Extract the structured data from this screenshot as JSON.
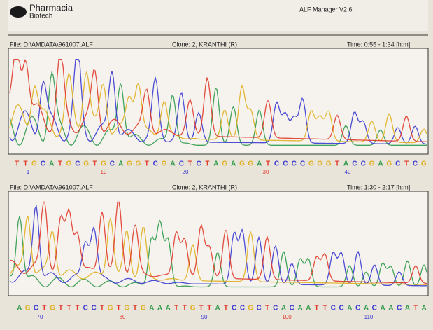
{
  "header": {
    "logo_line1": "Pharmacia",
    "logo_line2": "Biotech",
    "app": "ALF Manager V2.6"
  },
  "panels": [
    {
      "file": "File: D:\\AMDATA\\961007.ALF",
      "clone": "Clone: 2,   KRANTHI   (R)",
      "time": "Time: 0:55 - 1:34 [h:m]",
      "bases": [
        "T",
        "T",
        "G",
        "C",
        "A",
        "T",
        "G",
        "C",
        "G",
        "T",
        "G",
        "C",
        "A",
        "G",
        "G",
        "T",
        "C",
        "G",
        "A",
        "C",
        "T",
        "C",
        "T",
        "A",
        "G",
        "A",
        "G",
        "G",
        "A",
        "T",
        "C",
        "C",
        "C",
        "C",
        "G",
        "G",
        "G",
        "T",
        "A",
        "C",
        "C",
        "G",
        "A",
        "G",
        "C",
        "T",
        "C",
        "G"
      ],
      "positions": [
        "1",
        "10",
        "20",
        "30",
        "40"
      ]
    },
    {
      "file": "File: D:\\AMDATA\\961007.ALF",
      "clone": "Clone: 2,   KRANTHI   (R)",
      "time": "Time: 1:30 - 2:17 [h:m]",
      "bases": [
        "A",
        "G",
        "C",
        "T",
        "G",
        "T",
        "T",
        "T",
        "C",
        "C",
        "T",
        "G",
        "T",
        "G",
        "T",
        "G",
        "A",
        "A",
        "A",
        "T",
        "T",
        "G",
        "T",
        "T",
        "A",
        "T",
        "C",
        "C",
        "G",
        "C",
        "T",
        "C",
        "A",
        "C",
        "A",
        "A",
        "T",
        "T",
        "C",
        "C",
        "A",
        "C",
        "A",
        "C",
        "A",
        "A",
        "C",
        "A",
        "T",
        "A"
      ],
      "positions": [
        "70",
        "80",
        "90",
        "100",
        "110"
      ]
    }
  ]
}
